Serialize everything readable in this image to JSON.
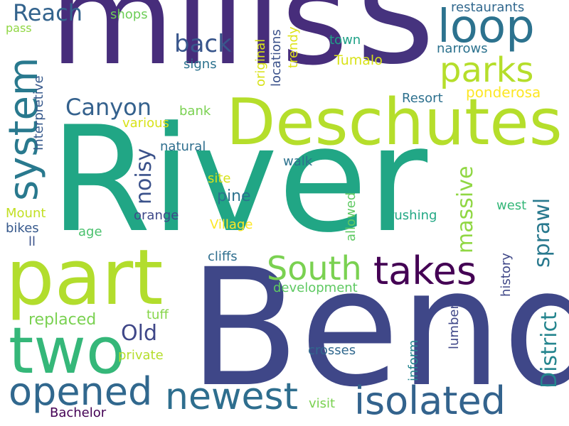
{
  "words": [
    {
      "text": "River",
      "color": "#21a685",
      "vertical": false
    },
    {
      "text": "Bend",
      "color": "#3f4788",
      "vertical": false
    },
    {
      "text": "mills",
      "color": "#472d7b",
      "vertical": false
    },
    {
      "text": "s",
      "color": "#46337e",
      "vertical": false
    },
    {
      "text": "Deschutes",
      "color": "#b5de2b",
      "vertical": false
    },
    {
      "text": "part",
      "color": "#b2dd2d",
      "vertical": false
    },
    {
      "text": "two",
      "color": "#35b779",
      "vertical": false
    },
    {
      "text": "loop",
      "color": "#2c728e",
      "vertical": false
    },
    {
      "text": "newest",
      "color": "#2e6e8e",
      "vertical": false
    },
    {
      "text": "isolated",
      "color": "#33638d",
      "vertical": false
    },
    {
      "text": "opened",
      "color": "#31688e",
      "vertical": false
    },
    {
      "text": "takes",
      "color": "#440154",
      "vertical": false
    },
    {
      "text": "system",
      "color": "#29798e",
      "vertical": true
    },
    {
      "text": "parks",
      "color": "#b5de2b",
      "vertical": false
    },
    {
      "text": "South",
      "color": "#7ad151",
      "vertical": false
    },
    {
      "text": "back",
      "color": "#39568c",
      "vertical": false
    },
    {
      "text": "Canyon",
      "color": "#34618d",
      "vertical": false
    },
    {
      "text": "Reach",
      "color": "#33638d",
      "vertical": false
    },
    {
      "text": "massive",
      "color": "#90d743",
      "vertical": true
    },
    {
      "text": "District",
      "color": "#25858e",
      "vertical": true
    },
    {
      "text": "sprawl",
      "color": "#29798e",
      "vertical": true
    },
    {
      "text": "noisy",
      "color": "#3b528b",
      "vertical": true
    },
    {
      "text": "Old",
      "color": "#3f4788",
      "vertical": false
    },
    {
      "text": "replaced",
      "color": "#7ad151",
      "vertical": false
    },
    {
      "text": "ponderosa",
      "color": "#fde725",
      "vertical": false
    },
    {
      "text": "pine",
      "color": "#2c728e",
      "vertical": false
    },
    {
      "text": "restaurants",
      "color": "#31688e",
      "vertical": false
    },
    {
      "text": "shops",
      "color": "#6ece58",
      "vertical": false
    },
    {
      "text": "narrows",
      "color": "#2c728e",
      "vertical": false
    },
    {
      "text": "Tumalo",
      "color": "#d8e219",
      "vertical": false
    },
    {
      "text": "town",
      "color": "#1fa187",
      "vertical": false
    },
    {
      "text": "Resort",
      "color": "#2d708e",
      "vertical": false
    },
    {
      "text": "signs",
      "color": "#2c728e",
      "vertical": false
    },
    {
      "text": "pass",
      "color": "#90d743",
      "vertical": false
    },
    {
      "text": "original",
      "color": "#d8e219",
      "vertical": true
    },
    {
      "text": "locations",
      "color": "#3b528b",
      "vertical": true
    },
    {
      "text": "trendy",
      "color": "#dde318",
      "vertical": true
    },
    {
      "text": "Interpretive",
      "color": "#37598c",
      "vertical": true
    },
    {
      "text": "various",
      "color": "#d8e219",
      "vertical": false
    },
    {
      "text": "bank",
      "color": "#7ad151",
      "vertical": false
    },
    {
      "text": "natural",
      "color": "#2e6e8e",
      "vertical": false
    },
    {
      "text": "walk",
      "color": "#2c728e",
      "vertical": false
    },
    {
      "text": "site",
      "color": "#d8e219",
      "vertical": false
    },
    {
      "text": "allowed",
      "color": "#5ec962",
      "vertical": true
    },
    {
      "text": "west",
      "color": "#35b779",
      "vertical": false
    },
    {
      "text": "rushing",
      "color": "#22a884",
      "vertical": false
    },
    {
      "text": "orange",
      "color": "#3e4989",
      "vertical": false
    },
    {
      "text": "Village",
      "color": "#fde725",
      "vertical": false
    },
    {
      "text": "Mount",
      "color": "#c2df23",
      "vertical": false
    },
    {
      "text": "bikes",
      "color": "#37598c",
      "vertical": false
    },
    {
      "text": "age",
      "color": "#4ac16d",
      "vertical": false
    },
    {
      "text": "ll",
      "color": "#3b528b",
      "vertical": false
    },
    {
      "text": "history",
      "color": "#3f4788",
      "vertical": true
    },
    {
      "text": "cliffs",
      "color": "#2e6e8e",
      "vertical": false
    },
    {
      "text": "development",
      "color": "#5ec962",
      "vertical": false
    },
    {
      "text": "tuff",
      "color": "#86d549",
      "vertical": false
    },
    {
      "text": "lumber",
      "color": "#3f4788",
      "vertical": true
    },
    {
      "text": "private",
      "color": "#b5de2b",
      "vertical": false
    },
    {
      "text": "crosses",
      "color": "#31688e",
      "vertical": false
    },
    {
      "text": "inform",
      "color": "#25858e",
      "vertical": true
    },
    {
      "text": "visit",
      "color": "#7ad151",
      "vertical": false
    },
    {
      "text": "Bachelor",
      "color": "#440154",
      "vertical": false
    }
  ]
}
